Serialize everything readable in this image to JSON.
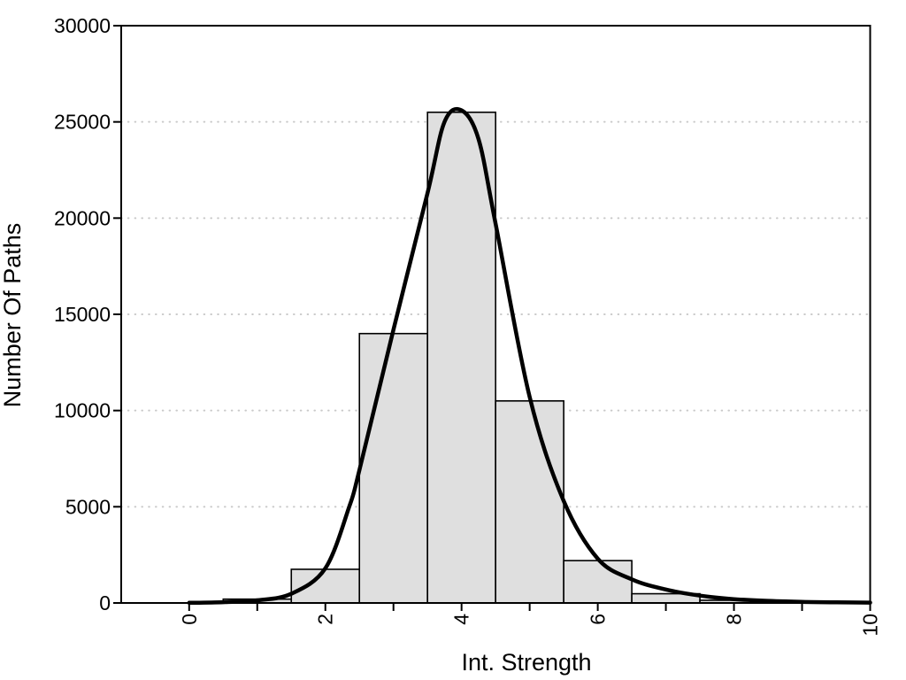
{
  "figure": {
    "x_axis_title": "Int. Strength",
    "y_axis_title": "Number Of Paths"
  },
  "chart_data": {
    "type": "bar",
    "subtype": "histogram_with_density_overlay",
    "title": "",
    "xlabel": "Int. Strength",
    "ylabel": "Number Of Paths",
    "xlim": [
      -1,
      10
    ],
    "ylim": [
      0,
      30000
    ],
    "grid": "horizontal dotted lines at y major ticks",
    "legend": "none",
    "x_ticks": {
      "values": [
        0,
        1,
        2,
        3,
        4,
        5,
        6,
        7,
        8,
        9,
        10
      ],
      "labels": [
        "0",
        "",
        "2",
        "",
        "4",
        "",
        "6",
        "",
        "8",
        "",
        "10"
      ]
    },
    "y_ticks": {
      "values": [
        0,
        5000,
        10000,
        15000,
        20000,
        25000,
        30000
      ],
      "labels": [
        "0",
        "5000",
        "10000",
        "15000",
        "20000",
        "25000",
        "30000"
      ]
    },
    "histogram": {
      "bin_width": 1,
      "bin_centers": [
        1,
        2,
        3,
        4,
        5,
        6,
        7,
        8,
        9
      ],
      "counts": [
        200,
        1750,
        14000,
        25500,
        10500,
        2200,
        480,
        140,
        40
      ],
      "bar_fill": "#dfdfdf",
      "bar_stroke": "#000000"
    },
    "density_curve": {
      "color": "#000000",
      "x": [
        0,
        0.5,
        1,
        1.5,
        2,
        2.35,
        2.5,
        3,
        3.5,
        3.75,
        4,
        4.25,
        4.5,
        5,
        5.5,
        6,
        6.5,
        7,
        7.5,
        8,
        8.5,
        9,
        9.5,
        10
      ],
      "y": [
        10,
        40,
        140,
        480,
        1800,
        5000,
        6900,
        14200,
        21300,
        25000,
        25600,
        24100,
        19700,
        10700,
        5300,
        2300,
        1230,
        700,
        380,
        200,
        110,
        60,
        35,
        20
      ]
    },
    "colors": {
      "background": "#ffffff",
      "axis": "#000000",
      "gridline": "#c9c9c9",
      "text": "#000000"
    }
  }
}
